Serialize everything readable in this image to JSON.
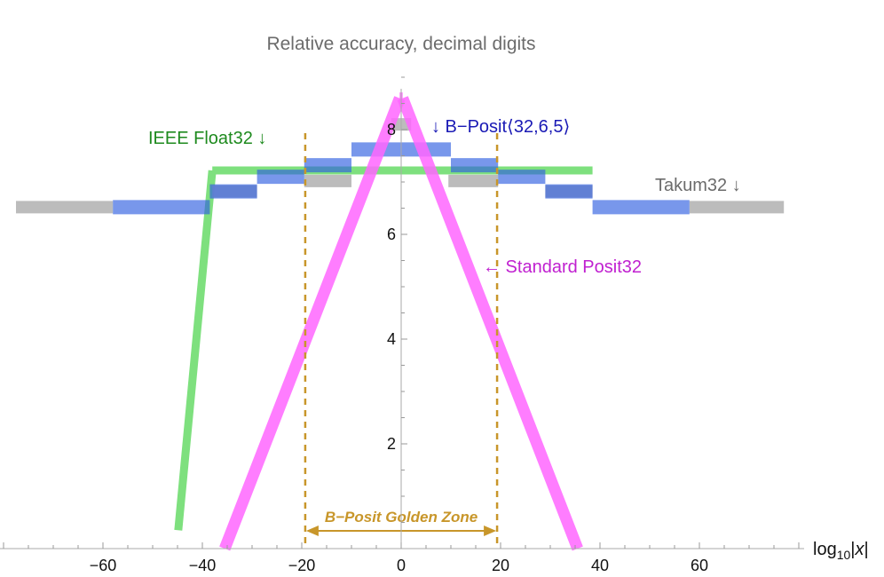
{
  "chart_data": {
    "type": "line",
    "title": "Relative accuracy, decimal digits",
    "xlabel": "log10|x|",
    "xlabel_parts": {
      "base": "log",
      "sub": "10",
      "rest": "|x|"
    },
    "xlim": [
      -80,
      78
    ],
    "ylim": [
      0,
      9
    ],
    "xticks": [
      -60,
      -40,
      -20,
      0,
      20,
      40,
      60
    ],
    "yticks": [
      2,
      4,
      6,
      8
    ],
    "series": [
      {
        "name": "IEEE Float32 ↓",
        "color": "#7ee07e",
        "segments": [
          {
            "x": [
              -44.85,
              -38.0
            ],
            "y": [
              0.35,
              7.22
            ]
          },
          {
            "x": [
              -38.0,
              38.5
            ],
            "y": [
              7.22,
              7.22
            ]
          }
        ]
      },
      {
        "name": "Takum32 ↓",
        "color": "#b8b8b8",
        "segments": [
          {
            "x": [
              -77.5,
              -58
            ],
            "y": [
              6.52,
              6.52
            ]
          },
          {
            "x": [
              -38.0,
              -29
            ],
            "y": [
              6.82,
              6.82
            ]
          },
          {
            "x": [
              -19.5,
              -10
            ],
            "y": [
              7.02,
              7.02
            ]
          },
          {
            "x": [
              -2.0,
              2.0
            ],
            "y": [
              8.1,
              8.1
            ]
          },
          {
            "x": [
              9.5,
              19.5
            ],
            "y": [
              7.02,
              7.02
            ]
          },
          {
            "x": [
              29.0,
              38.5
            ],
            "y": [
              6.82,
              6.82
            ]
          },
          {
            "x": [
              58.0,
              77.0
            ],
            "y": [
              6.52,
              6.52
            ]
          }
        ]
      },
      {
        "name": "↓ B−Posit⟨32,6,5⟩",
        "color": "#2f5fe0",
        "segments": [
          {
            "x": [
              -58,
              -38.5
            ],
            "y": [
              6.52,
              6.52
            ]
          },
          {
            "x": [
              -38.5,
              -29
            ],
            "y": [
              6.82,
              6.82
            ]
          },
          {
            "x": [
              -29,
              -19.5
            ],
            "y": [
              7.1,
              7.1
            ]
          },
          {
            "x": [
              -19.5,
              -10
            ],
            "y": [
              7.32,
              7.32
            ]
          },
          {
            "x": [
              -10,
              10
            ],
            "y": [
              7.62,
              7.62
            ]
          },
          {
            "x": [
              10,
              19.5
            ],
            "y": [
              7.32,
              7.32
            ]
          },
          {
            "x": [
              19.5,
              29
            ],
            "y": [
              7.1,
              7.1
            ]
          },
          {
            "x": [
              29,
              38.5
            ],
            "y": [
              6.82,
              6.82
            ]
          },
          {
            "x": [
              38.5,
              58
            ],
            "y": [
              6.52,
              6.52
            ]
          }
        ]
      },
      {
        "name": "Standard Posit32",
        "label_text": "← Standard Posit32",
        "color": "#ff66ff",
        "segments": [
          {
            "x": [
              -35.5,
              -0.3
            ],
            "y": [
              0,
              8.6
            ]
          },
          {
            "x": [
              -0.3,
              0.3
            ],
            "y": [
              8.6,
              8.6
            ]
          },
          {
            "x": [
              0.3,
              35.5
            ],
            "y": [
              8.6,
              0
            ]
          }
        ]
      }
    ],
    "golden_zone": {
      "x": [
        -19.3,
        19.3
      ],
      "label": "B−Posit Golden Zone",
      "color": "#c8962a"
    },
    "annotations": [
      {
        "text": "IEEE Float32 ↓",
        "color": "#1e8a1e"
      },
      {
        "text": "↓ B−Posit⟨32,6,5⟩",
        "color": "#1a1ab5"
      },
      {
        "text": "Takum32 ↓",
        "color": "#6b6b6b"
      },
      {
        "text": "← Standard Posit32",
        "color": "#c020d0"
      }
    ]
  }
}
